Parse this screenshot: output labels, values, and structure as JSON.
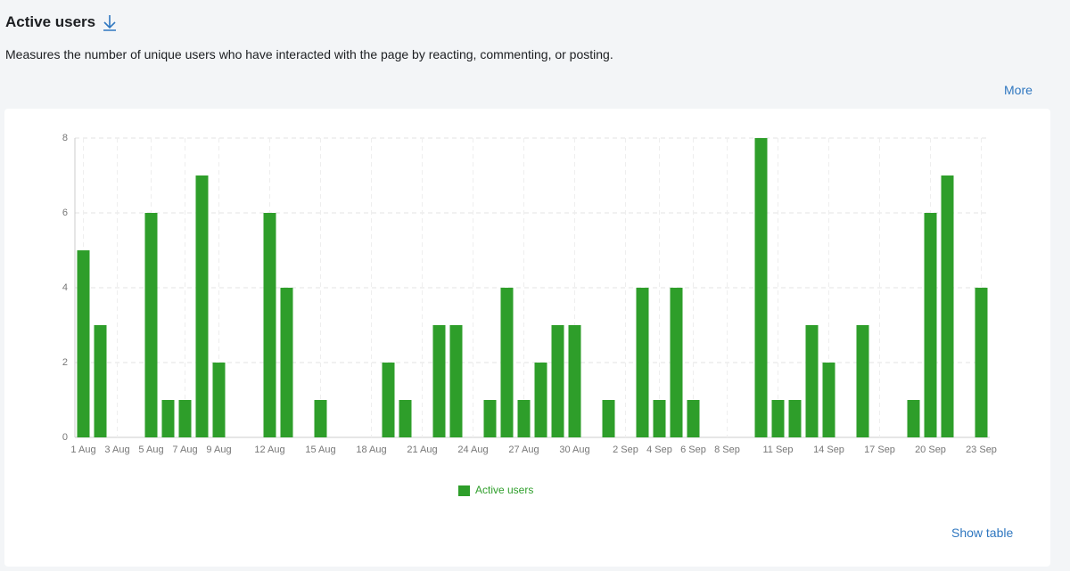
{
  "header": {
    "title": "Active users",
    "description": "Measures the number of unique users who have interacted with the page by reacting, commenting, or posting.",
    "more": "More"
  },
  "chart_data": {
    "type": "bar",
    "categories": [
      "1 Aug",
      null,
      "3 Aug",
      null,
      "5 Aug",
      null,
      "7 Aug",
      null,
      "9 Aug",
      null,
      null,
      "12 Aug",
      null,
      null,
      "15 Aug",
      null,
      null,
      "18 Aug",
      null,
      null,
      "21 Aug",
      null,
      null,
      "24 Aug",
      null,
      null,
      "27 Aug",
      null,
      null,
      "30 Aug",
      null,
      null,
      "2 Sep",
      null,
      "4 Sep",
      null,
      "6 Sep",
      null,
      "8 Sep",
      null,
      null,
      "11 Sep",
      null,
      null,
      "14 Sep",
      null,
      null,
      "17 Sep",
      null,
      null,
      "20 Sep",
      null,
      null,
      "23 Sep"
    ],
    "series": [
      {
        "name": "Active users",
        "color": "#2e9e2a",
        "values": [
          5,
          3,
          0,
          0,
          6,
          1,
          1,
          7,
          2,
          0,
          0,
          6,
          4,
          0,
          1,
          0,
          0,
          0,
          2,
          1,
          0,
          3,
          3,
          0,
          1,
          4,
          1,
          2,
          3,
          3,
          0,
          1,
          0,
          4,
          1,
          4,
          1,
          0,
          0,
          0,
          8,
          1,
          1,
          3,
          2,
          0,
          3,
          0,
          0,
          1,
          6,
          7,
          0,
          4
        ]
      }
    ],
    "ylim": [
      0,
      8
    ],
    "yticks": [
      0,
      2,
      4,
      6,
      8
    ],
    "grid": true
  },
  "footer": {
    "show_table": "Show table"
  }
}
